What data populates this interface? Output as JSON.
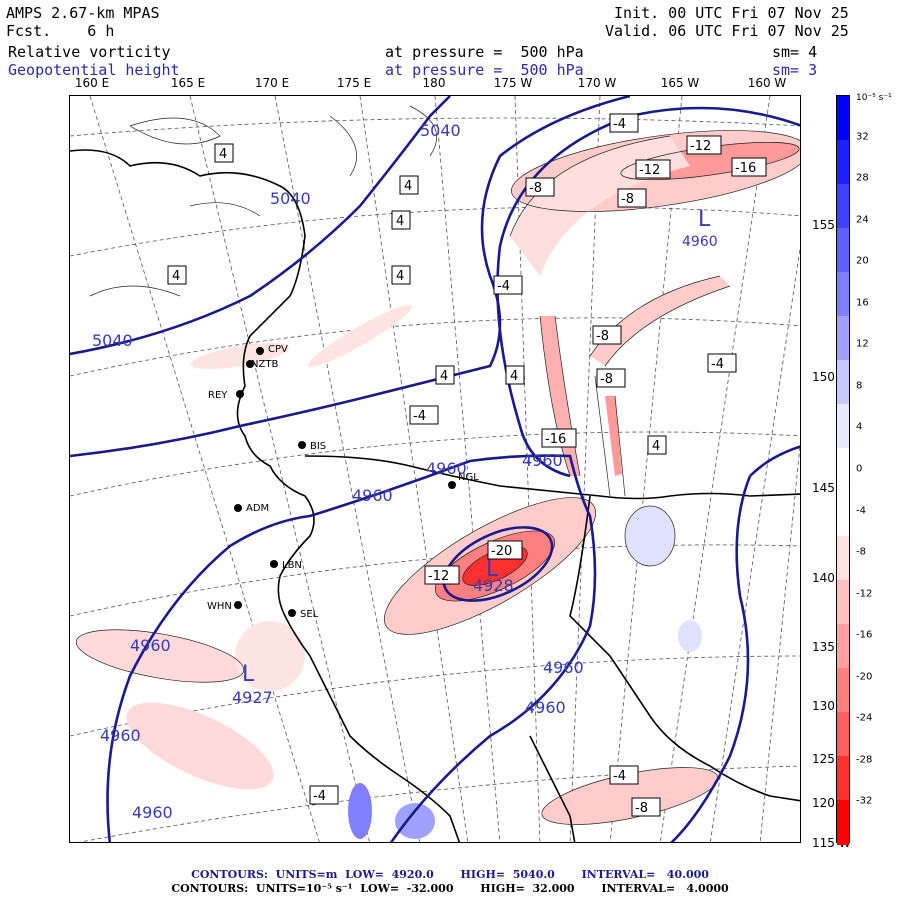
{
  "header": {
    "model": "AMPS 2.67-km MPAS",
    "fcst": "Fcst.    6 h",
    "init": "Init. 00 UTC Fri 07 Nov 25",
    "valid": "Valid. 06 UTC Fri 07 Nov 25",
    "field1_name": "Relative vorticity",
    "field1_level": "at pressure =  500 hPa",
    "field1_sm": "sm= 4",
    "field2_name": "Geopotential height",
    "field2_level": "at pressure =  500 hPa",
    "field2_sm": "sm= 3"
  },
  "longitude_labels": [
    "160 E",
    "165 E",
    "170 E",
    "175 E",
    "180",
    "175 W",
    "170 W",
    "165 W",
    "160 W"
  ],
  "latitude_labels": [
    "155 W",
    "150 W",
    "145 W",
    "140 W",
    "135 W",
    "130 W",
    "125 W",
    "120 W",
    "115 W"
  ],
  "colorbar": {
    "unit": "10⁻⁵ s⁻¹",
    "ticks": [
      "32",
      "28",
      "24",
      "20",
      "16",
      "12",
      "8",
      "4",
      "0",
      "-4",
      "-8",
      "-12",
      "-16",
      "-20",
      "-24",
      "-28",
      "-32"
    ],
    "colors": [
      "#0000ff",
      "#2020ff",
      "#4040ff",
      "#6060ff",
      "#8080ff",
      "#a0a0ff",
      "#c8c8ff",
      "#e8e8ff",
      "#ffffff",
      "#ffffff",
      "#ffe0e0",
      "#ffc0c0",
      "#ffa0a0",
      "#ff8080",
      "#ff6060",
      "#ff3030",
      "#ff0000"
    ]
  },
  "stations": [
    "CPV",
    "NZTB",
    "REY",
    "BIS",
    "NGL",
    "ADM",
    "LBN",
    "WHN",
    "SEL"
  ],
  "height_contour_labels": [
    "5040",
    "5040",
    "5040",
    "4960",
    "4960",
    "4960",
    "4960",
    "4960",
    "4960",
    "4960",
    "4960",
    "4928",
    "4927"
  ],
  "lows": [
    {
      "symbol": "L",
      "value": "4960"
    },
    {
      "symbol": "L",
      "value": "4927"
    },
    {
      "symbol": "L",
      "value": "4928"
    }
  ],
  "vorticity_labels": [
    "4",
    "4",
    "4",
    "4",
    "4",
    "4",
    "4",
    "4",
    "-4",
    "-4",
    "-4",
    "-4",
    "-8",
    "-8",
    "-8",
    "-8",
    "-12",
    "-12",
    "-12",
    "-16",
    "-16",
    "-20",
    "-4",
    "-4",
    "-8"
  ],
  "footer": {
    "line1": "CONTOURS:  UNITS=m  LOW=  4920.0       HIGH=  5040.0       INTERVAL=   40.000",
    "line2": "CONTOURS:  UNITS=10⁻⁵ s⁻¹  LOW=  -32.000       HIGH=  32.000       INTERVAL=   4.0000"
  }
}
